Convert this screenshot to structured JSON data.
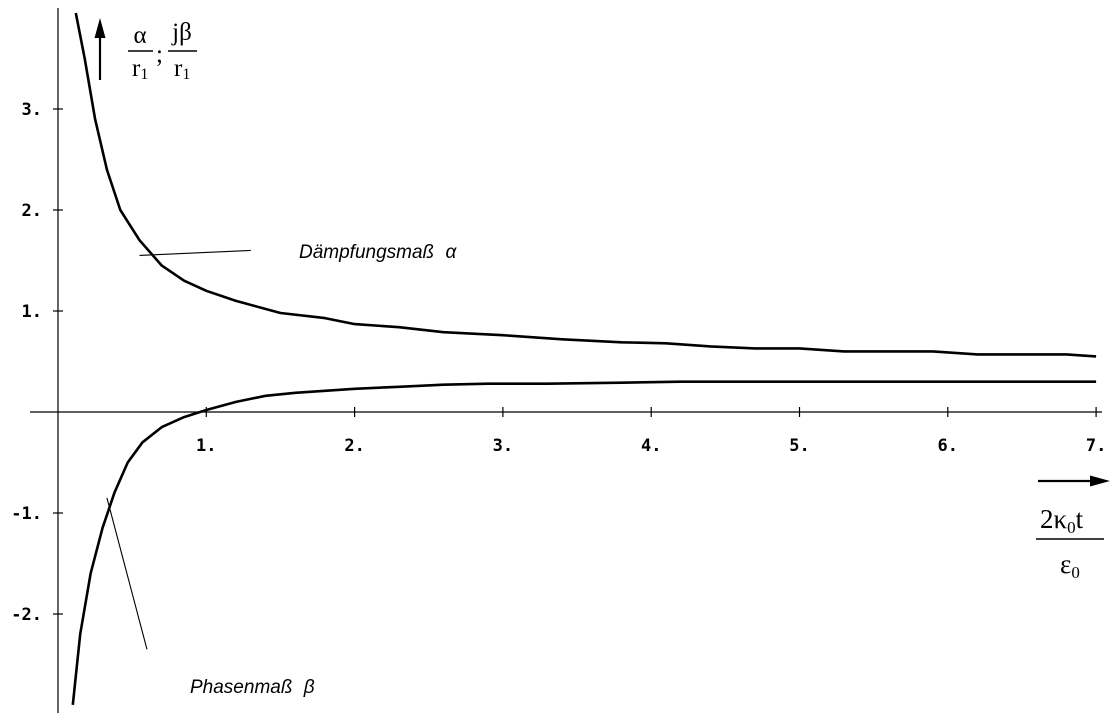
{
  "chart_data": {
    "type": "line",
    "title": "",
    "x_axis": {
      "label": {
        "numerator": "2κ",
        "numerator_sub": "0",
        "numerator_tail": "t",
        "denominator": "ε",
        "denominator_sub": "0"
      },
      "ticks": [
        1,
        2,
        3,
        4,
        5,
        6,
        7
      ],
      "tick_labels": [
        "1.",
        "2.",
        "3.",
        "4.",
        "5.",
        "6.",
        "7."
      ],
      "range": [
        -0.98,
        7.06
      ]
    },
    "y_axis": {
      "label": {
        "left_num": "α",
        "left_den": "r",
        "left_den_sub": "1",
        "sep": ";",
        "right_num": "jβ",
        "right_den": "r",
        "right_den_sub": "1"
      },
      "ticks": [
        3,
        2,
        1,
        -1,
        -2
      ],
      "tick_labels": [
        "3.",
        "2.",
        "1.",
        "-1.",
        "-2."
      ],
      "range": [
        -2.9,
        3.95
      ]
    },
    "grid": false,
    "series": [
      {
        "name": "Dämpfungsmaß α",
        "x": [
          0.12,
          0.18,
          0.25,
          0.33,
          0.42,
          0.55,
          0.7,
          0.85,
          1.0,
          1.2,
          1.5,
          1.8,
          2.0,
          2.3,
          2.6,
          3.0,
          3.4,
          3.8,
          4.1,
          4.4,
          4.7,
          5.0,
          5.3,
          5.6,
          5.9,
          6.2,
          6.5,
          6.8,
          7.0
        ],
        "y": [
          3.95,
          3.5,
          2.9,
          2.4,
          2.0,
          1.7,
          1.45,
          1.3,
          1.2,
          1.1,
          0.98,
          0.93,
          0.87,
          0.84,
          0.79,
          0.76,
          0.72,
          0.69,
          0.68,
          0.65,
          0.63,
          0.63,
          0.6,
          0.6,
          0.6,
          0.57,
          0.57,
          0.57,
          0.55
        ]
      },
      {
        "name": "Phasenmaß β",
        "x": [
          0.1,
          0.15,
          0.22,
          0.3,
          0.38,
          0.47,
          0.57,
          0.7,
          0.85,
          1.0,
          1.2,
          1.4,
          1.6,
          1.8,
          2.0,
          2.3,
          2.6,
          2.9,
          3.3,
          3.8,
          4.2,
          4.6,
          5.0,
          5.5,
          6.0,
          6.5,
          7.0
        ],
        "y": [
          -2.9,
          -2.2,
          -1.6,
          -1.15,
          -0.8,
          -0.5,
          -0.3,
          -0.15,
          -0.05,
          0.02,
          0.1,
          0.16,
          0.19,
          0.21,
          0.23,
          0.25,
          0.27,
          0.28,
          0.28,
          0.29,
          0.3,
          0.3,
          0.3,
          0.3,
          0.3,
          0.3,
          0.3
        ]
      }
    ],
    "annotations": [
      {
        "text": "Dämpfungsmaß",
        "symbol": "α",
        "target_x": 0.55,
        "target_y": 1.55,
        "label_x": 1.3,
        "label_y": 1.6
      },
      {
        "text": "Phasenmaß",
        "symbol": "β",
        "target_x": 0.33,
        "target_y": -0.85,
        "label_x": 0.6,
        "label_y": -2.35
      }
    ]
  }
}
